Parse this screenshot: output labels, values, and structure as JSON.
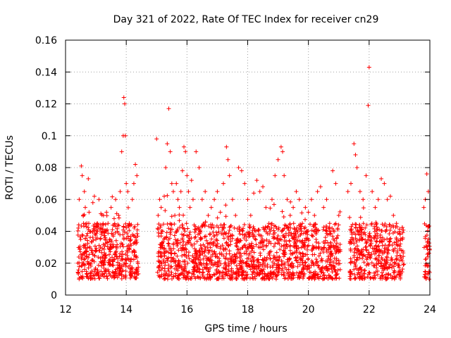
{
  "chart_data": {
    "type": "scatter",
    "title": "Day 321 of 2022, Rate Of TEC Index for receiver cn29",
    "xlabel": "GPS time / hours",
    "ylabel": "ROTI / TECUs",
    "xlim": [
      12,
      24
    ],
    "ylim": [
      0,
      0.16
    ],
    "xticks": [
      12,
      14,
      16,
      18,
      20,
      22,
      24
    ],
    "xtick_labels": [
      "12",
      "14",
      "16",
      "18",
      "20",
      "22",
      "24"
    ],
    "yticks": [
      0,
      0.02,
      0.04,
      0.06,
      0.08,
      0.1,
      0.12,
      0.14,
      0.16
    ],
    "ytick_labels": [
      "0",
      "0.02",
      "0.04",
      "0.06",
      "0.08",
      "0.1",
      "0.12",
      "0.14",
      "0.16"
    ],
    "grid": true,
    "marker": "plus",
    "color": "#ff0000",
    "series": [
      {
        "name": "ROTI",
        "x": [
          12.4,
          12.45,
          12.5,
          12.52,
          12.55,
          12.58,
          12.6,
          12.62,
          12.65,
          12.7,
          12.75,
          12.8,
          12.85,
          12.9,
          12.95,
          13.0,
          13.05,
          13.1,
          13.15,
          13.2,
          13.25,
          13.3,
          13.35,
          13.4,
          13.45,
          13.5,
          13.55,
          13.6,
          13.65,
          13.7,
          13.75,
          13.8,
          13.85,
          13.9,
          13.92,
          13.95,
          13.97,
          14.0,
          14.05,
          14.1,
          14.15,
          14.2,
          14.25,
          14.3,
          14.35,
          15.0,
          15.05,
          15.1,
          15.15,
          15.2,
          15.25,
          15.3,
          15.35,
          15.4,
          15.45,
          15.5,
          15.55,
          15.6,
          15.65,
          15.7,
          15.75,
          15.8,
          15.85,
          15.9,
          15.95,
          16.0,
          16.05,
          16.1,
          16.15,
          16.2,
          16.3,
          16.4,
          16.5,
          16.6,
          16.7,
          16.8,
          16.9,
          17.0,
          17.1,
          17.2,
          17.3,
          17.35,
          17.4,
          17.5,
          17.6,
          17.7,
          17.8,
          17.9,
          18.0,
          18.1,
          18.2,
          18.3,
          18.4,
          18.5,
          18.6,
          18.7,
          18.8,
          18.9,
          19.0,
          19.1,
          19.15,
          19.2,
          19.3,
          19.4,
          19.5,
          19.6,
          19.7,
          19.8,
          19.9,
          20.0,
          20.1,
          20.2,
          20.3,
          20.4,
          20.5,
          20.6,
          20.7,
          20.8,
          20.9,
          21.0,
          21.3,
          21.4,
          21.5,
          21.55,
          21.6,
          21.7,
          21.8,
          21.9,
          21.97,
          22.0,
          22.1,
          22.2,
          22.3,
          22.4,
          22.5,
          22.6,
          22.7,
          22.8,
          22.9,
          23.0,
          23.1,
          23.8,
          23.85,
          23.9,
          23.95
        ],
        "y": [
          0.02,
          0.06,
          0.035,
          0.081,
          0.075,
          0.05,
          0.03,
          0.065,
          0.055,
          0.045,
          0.073,
          0.04,
          0.028,
          0.058,
          0.062,
          0.035,
          0.045,
          0.06,
          0.03,
          0.04,
          0.05,
          0.025,
          0.052,
          0.045,
          0.035,
          0.055,
          0.03,
          0.048,
          0.06,
          0.04,
          0.05,
          0.065,
          0.09,
          0.1,
          0.124,
          0.12,
          0.1,
          0.07,
          0.065,
          0.045,
          0.035,
          0.06,
          0.07,
          0.082,
          0.075,
          0.098,
          0.05,
          0.06,
          0.055,
          0.04,
          0.062,
          0.08,
          0.095,
          0.117,
          0.09,
          0.07,
          0.065,
          0.05,
          0.07,
          0.06,
          0.055,
          0.065,
          0.078,
          0.093,
          0.09,
          0.075,
          0.065,
          0.055,
          0.072,
          0.06,
          0.09,
          0.08,
          0.06,
          0.065,
          0.05,
          0.055,
          0.06,
          0.065,
          0.052,
          0.07,
          0.093,
          0.085,
          0.075,
          0.06,
          0.05,
          0.08,
          0.078,
          0.07,
          0.06,
          0.05,
          0.064,
          0.072,
          0.065,
          0.068,
          0.055,
          0.045,
          0.06,
          0.075,
          0.085,
          0.093,
          0.09,
          0.075,
          0.06,
          0.05,
          0.055,
          0.065,
          0.06,
          0.045,
          0.055,
          0.052,
          0.06,
          0.05,
          0.065,
          0.068,
          0.055,
          0.06,
          0.045,
          0.078,
          0.07,
          0.05,
          0.065,
          0.07,
          0.095,
          0.088,
          0.08,
          0.065,
          0.06,
          0.075,
          0.119,
          0.143,
          0.065,
          0.055,
          0.06,
          0.073,
          0.07,
          0.06,
          0.062,
          0.05,
          0.045,
          0.04,
          0.035,
          0.055,
          0.06,
          0.076,
          0.065
        ]
      }
    ],
    "dense_band": {
      "segments": [
        [
          12.4,
          14.4
        ],
        [
          15.0,
          21.05
        ],
        [
          21.35,
          23.15
        ],
        [
          23.8,
          24.0
        ]
      ],
      "typical_range": [
        0.01,
        0.045
      ]
    }
  }
}
